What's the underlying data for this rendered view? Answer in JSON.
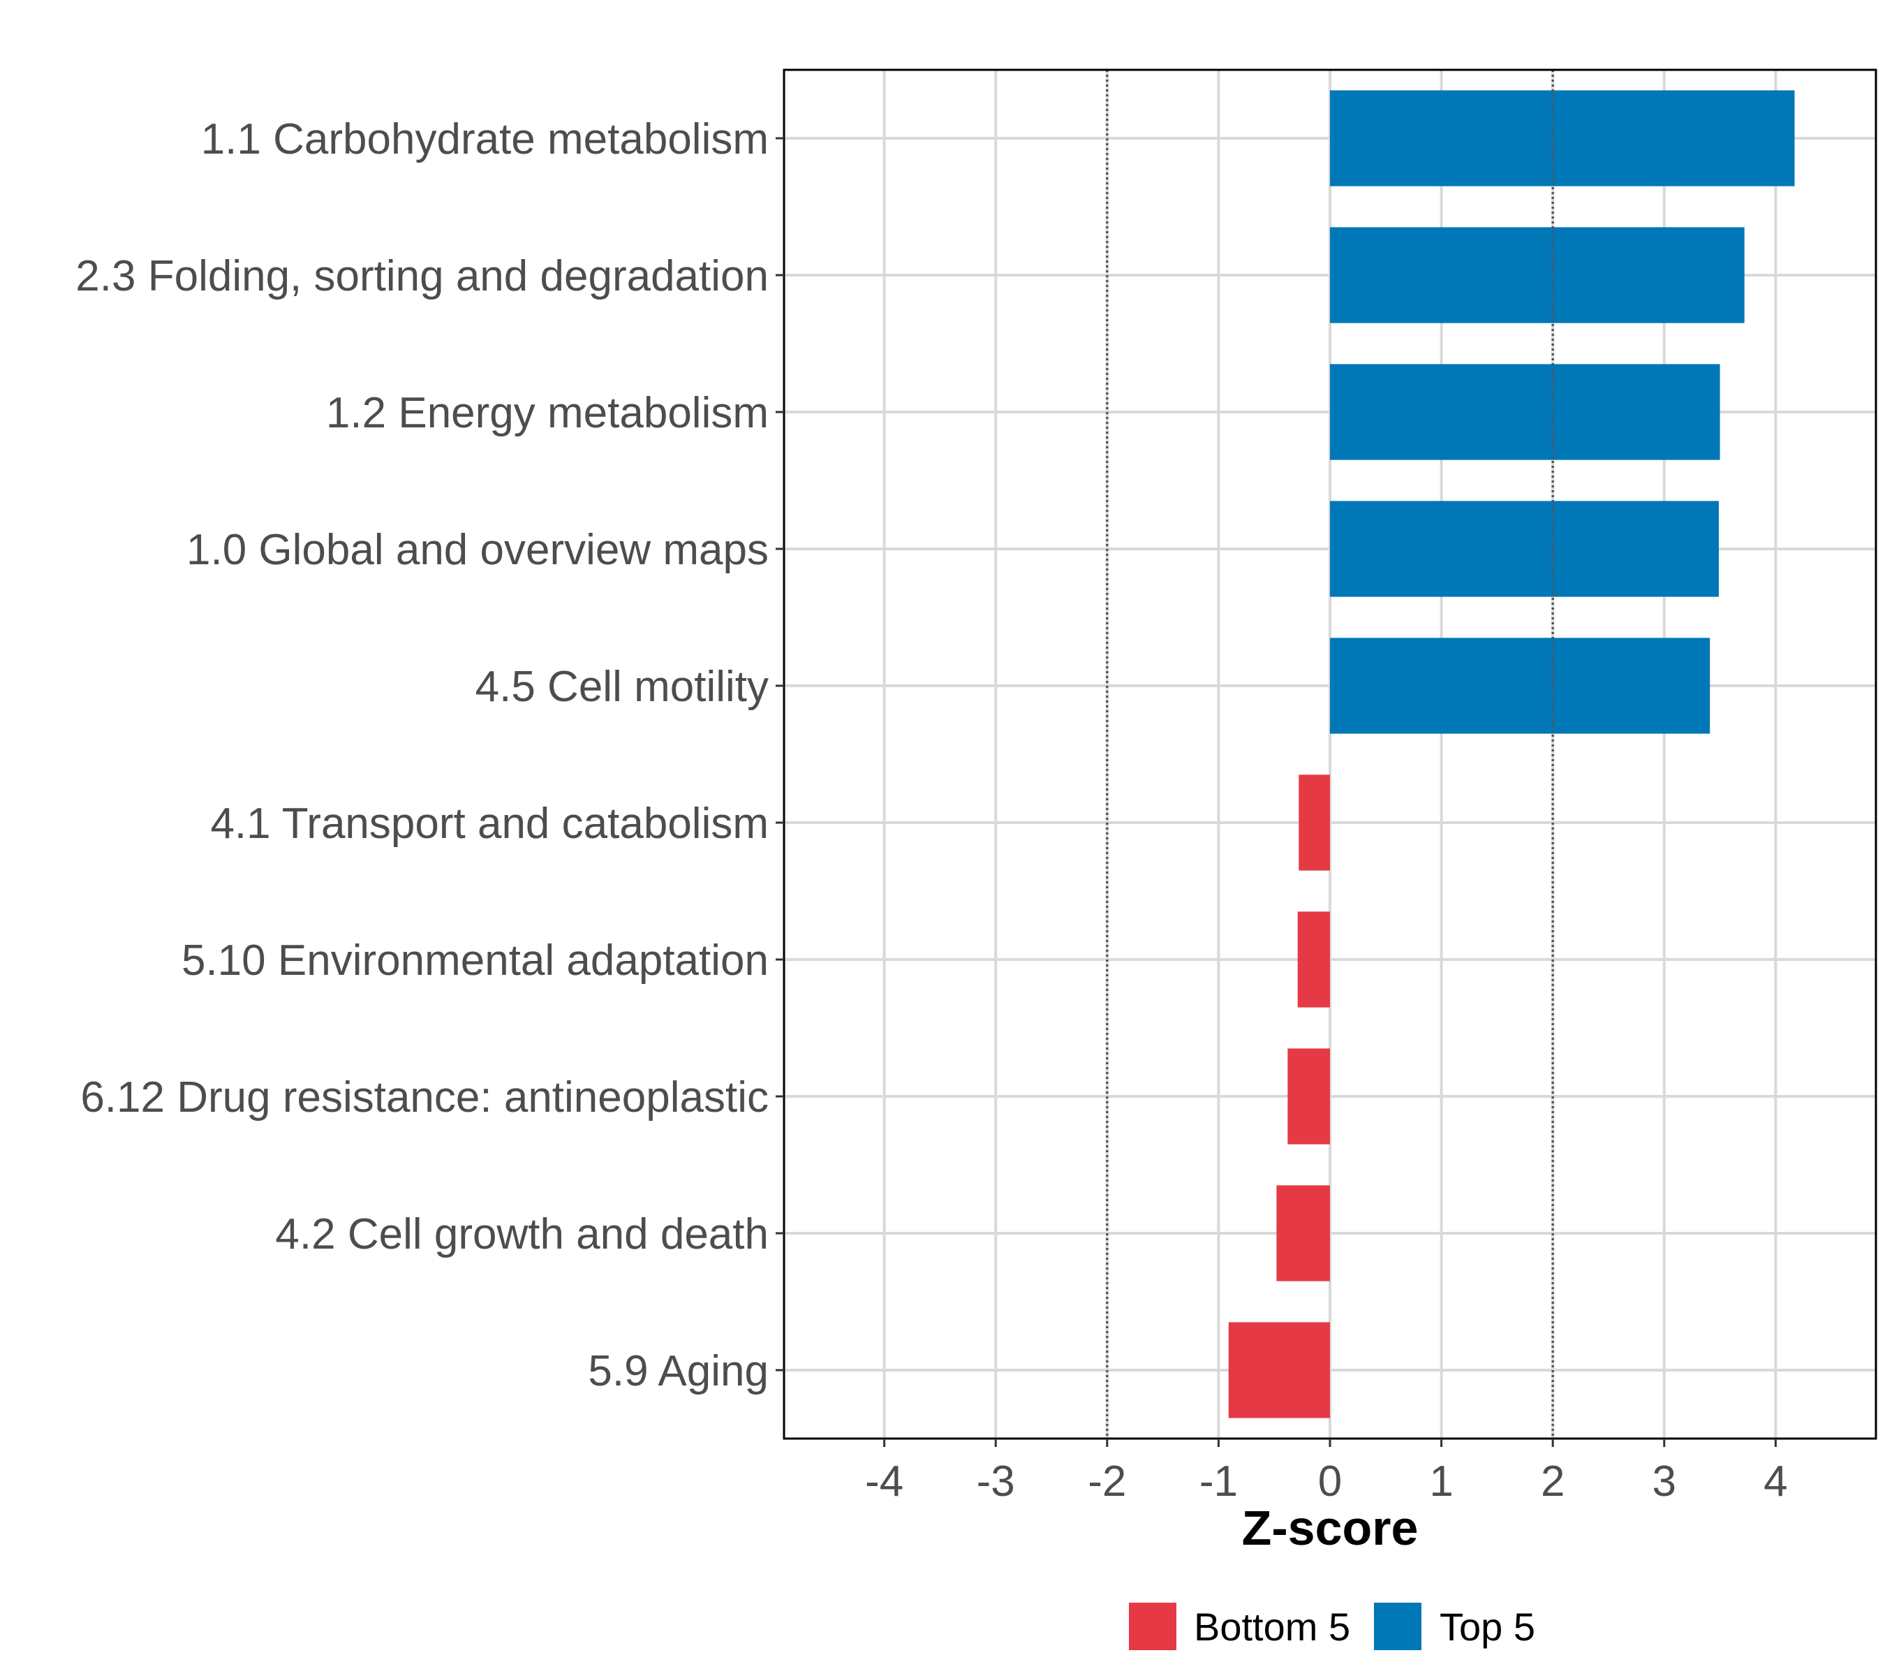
{
  "chart_data": {
    "type": "bar",
    "orientation": "horizontal",
    "title": "",
    "xlabel": "Z-score",
    "ylabel": "",
    "xlim": [
      -4.9,
      4.9
    ],
    "xticks": [
      -4,
      -3,
      -2,
      -1,
      0,
      1,
      2,
      3,
      4
    ],
    "tick_labels": [
      "-4",
      "-3",
      "-2",
      "-1",
      "0",
      "1",
      "2",
      "3",
      "4"
    ],
    "reference_lines": [
      -2,
      2
    ],
    "grid": true,
    "categories": [
      "1.1 Carbohydrate metabolism",
      "2.3 Folding, sorting and degradation",
      "1.2 Energy metabolism",
      "1.0 Global and overview maps",
      "4.5 Cell motility",
      "4.1 Transport and catabolism",
      "5.10 Environmental adaptation",
      "6.12 Drug resistance: antineoplastic",
      "4.2 Cell growth and death",
      "5.9 Aging"
    ],
    "values": [
      4.17,
      3.72,
      3.5,
      3.49,
      3.41,
      -0.28,
      -0.29,
      -0.38,
      -0.48,
      -0.91
    ],
    "groups": [
      "Top 5",
      "Top 5",
      "Top 5",
      "Top 5",
      "Top 5",
      "Bottom 5",
      "Bottom 5",
      "Bottom 5",
      "Bottom 5",
      "Bottom 5"
    ],
    "legend": {
      "position": "bottom",
      "entries": [
        {
          "name": "Bottom 5",
          "color": "#e63946"
        },
        {
          "name": "Top 5",
          "color": "#0077b6"
        }
      ]
    }
  }
}
